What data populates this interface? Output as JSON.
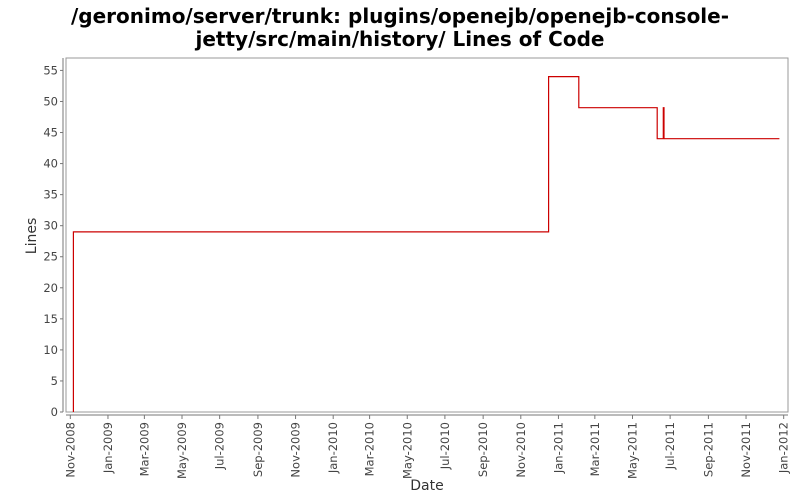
{
  "chart_data": {
    "type": "line",
    "title_line1": "/geronimo/server/trunk: plugins/openejb/openejb-console-",
    "title_line2": "jetty/src/main/history/ Lines of Code",
    "xlabel": "Date",
    "ylabel": "Lines",
    "ylim": [
      0,
      57
    ],
    "yticks": [
      0,
      5,
      10,
      15,
      20,
      25,
      30,
      35,
      40,
      45,
      50,
      55
    ],
    "xlim": [
      "2008-10-25",
      "2012-01-08"
    ],
    "xticks": [
      {
        "date": "2008-11-01",
        "label": "Nov-2008"
      },
      {
        "date": "2009-01-01",
        "label": "Jan-2009"
      },
      {
        "date": "2009-03-01",
        "label": "Mar-2009"
      },
      {
        "date": "2009-05-01",
        "label": "May-2009"
      },
      {
        "date": "2009-07-01",
        "label": "Jul-2009"
      },
      {
        "date": "2009-09-01",
        "label": "Sep-2009"
      },
      {
        "date": "2009-11-01",
        "label": "Nov-2009"
      },
      {
        "date": "2010-01-01",
        "label": "Jan-2010"
      },
      {
        "date": "2010-03-01",
        "label": "Mar-2010"
      },
      {
        "date": "2010-05-01",
        "label": "May-2010"
      },
      {
        "date": "2010-07-01",
        "label": "Jul-2010"
      },
      {
        "date": "2010-09-01",
        "label": "Sep-2010"
      },
      {
        "date": "2010-11-01",
        "label": "Nov-2010"
      },
      {
        "date": "2011-01-01",
        "label": "Jan-2011"
      },
      {
        "date": "2011-03-01",
        "label": "Mar-2011"
      },
      {
        "date": "2011-05-01",
        "label": "May-2011"
      },
      {
        "date": "2011-07-01",
        "label": "Jul-2011"
      },
      {
        "date": "2011-09-01",
        "label": "Sep-2011"
      },
      {
        "date": "2011-11-01",
        "label": "Nov-2011"
      },
      {
        "date": "2012-01-01",
        "label": "Jan-2012"
      }
    ],
    "series": [
      {
        "color": "#cc0000",
        "points": [
          {
            "x": "2008-11-06",
            "y": 0
          },
          {
            "x": "2008-11-06",
            "y": 29
          },
          {
            "x": "2010-12-16",
            "y": 29
          },
          {
            "x": "2010-12-16",
            "y": 54
          },
          {
            "x": "2011-02-03",
            "y": 54
          },
          {
            "x": "2011-02-03",
            "y": 49
          },
          {
            "x": "2011-06-10",
            "y": 49
          },
          {
            "x": "2011-06-10",
            "y": 44
          },
          {
            "x": "2011-06-20",
            "y": 44
          },
          {
            "x": "2011-06-20",
            "y": 49
          },
          {
            "x": "2011-06-21",
            "y": 49
          },
          {
            "x": "2011-06-21",
            "y": 44
          },
          {
            "x": "2011-12-25",
            "y": 44
          }
        ]
      }
    ],
    "grid": false,
    "legend": "none"
  }
}
